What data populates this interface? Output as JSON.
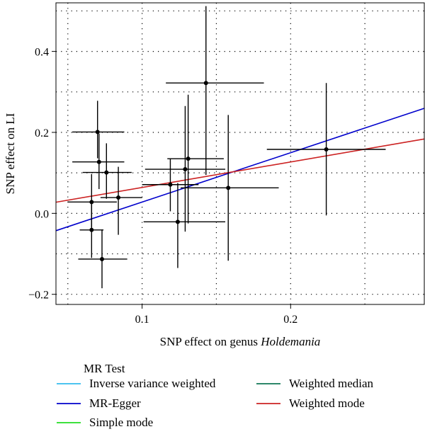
{
  "chart_data": {
    "type": "scatter",
    "xlabel_prefix": "SNP effect on genus ",
    "xlabel_italic": "Holdemania",
    "ylabel": "SNP effect on LI",
    "xlim": [
      0.042,
      0.29
    ],
    "ylim": [
      -0.225,
      0.52
    ],
    "x_ticks": [
      0.1,
      0.2
    ],
    "x_tick_labels": [
      "0.1",
      "0.2"
    ],
    "y_ticks": [
      -0.2,
      0.0,
      0.2,
      0.4
    ],
    "y_tick_labels": [
      "−0.2",
      "0.0",
      "0.2",
      "0.4"
    ],
    "x_grid": [
      0.05,
      0.1,
      0.15,
      0.2,
      0.25
    ],
    "y_grid": [
      -0.2,
      -0.1,
      0.0,
      0.1,
      0.2,
      0.3,
      0.4,
      0.5
    ],
    "grid": "dotted",
    "points": [
      {
        "x": 0.066,
        "y": -0.041,
        "xlo": 0.058,
        "xhi": 0.074,
        "ylo": -0.11,
        "yhi": 0.025
      },
      {
        "x": 0.066,
        "y": 0.028,
        "xlo": 0.05,
        "xhi": 0.083,
        "ylo": -0.035,
        "yhi": 0.097
      },
      {
        "x": 0.073,
        "y": -0.113,
        "xlo": 0.057,
        "xhi": 0.09,
        "ylo": -0.185,
        "yhi": -0.04
      },
      {
        "x": 0.07,
        "y": 0.201,
        "xlo": 0.053,
        "xhi": 0.088,
        "ylo": 0.136,
        "yhi": 0.278
      },
      {
        "x": 0.071,
        "y": 0.127,
        "xlo": 0.053,
        "xhi": 0.088,
        "ylo": 0.06,
        "yhi": 0.197
      },
      {
        "x": 0.076,
        "y": 0.101,
        "xlo": 0.06,
        "xhi": 0.093,
        "ylo": 0.036,
        "yhi": 0.173
      },
      {
        "x": 0.084,
        "y": 0.039,
        "xlo": 0.072,
        "xhi": 0.1,
        "ylo": -0.053,
        "yhi": 0.115
      },
      {
        "x": 0.119,
        "y": 0.071,
        "xlo": 0.1,
        "xhi": 0.138,
        "ylo": 0.005,
        "yhi": 0.135
      },
      {
        "x": 0.124,
        "y": -0.021,
        "xlo": 0.101,
        "xhi": 0.156,
        "ylo": -0.135,
        "yhi": 0.075
      },
      {
        "x": 0.129,
        "y": 0.109,
        "xlo": 0.102,
        "xhi": 0.156,
        "ylo": -0.045,
        "yhi": 0.265
      },
      {
        "x": 0.131,
        "y": 0.135,
        "xlo": 0.117,
        "xhi": 0.155,
        "ylo": -0.025,
        "yhi": 0.293
      },
      {
        "x": 0.143,
        "y": 0.322,
        "xlo": 0.116,
        "xhi": 0.182,
        "ylo": 0.095,
        "yhi": 0.512
      },
      {
        "x": 0.158,
        "y": 0.063,
        "xlo": 0.126,
        "xhi": 0.192,
        "ylo": -0.117,
        "yhi": 0.243
      },
      {
        "x": 0.224,
        "y": 0.158,
        "xlo": 0.184,
        "xhi": 0.264,
        "ylo": -0.005,
        "yhi": 0.322
      }
    ],
    "lines": [
      {
        "name": "MR-Egger",
        "color": "#0000cc",
        "intercept": -0.094,
        "slope": 1.219
      },
      {
        "name": "Weighted mode",
        "color": "#cc2222",
        "intercept": 0.001,
        "slope": 0.63
      }
    ],
    "legend": {
      "title": "MR Test",
      "position": "bottom",
      "entries": [
        {
          "label": "Inverse variance weighted",
          "color": "#33bbee"
        },
        {
          "label": "Weighted median",
          "color": "#117755"
        },
        {
          "label": "MR-Egger",
          "color": "#0000cc"
        },
        {
          "label": "Weighted mode",
          "color": "#cc2222"
        },
        {
          "label": "Simple mode",
          "color": "#22dd22"
        }
      ]
    }
  }
}
